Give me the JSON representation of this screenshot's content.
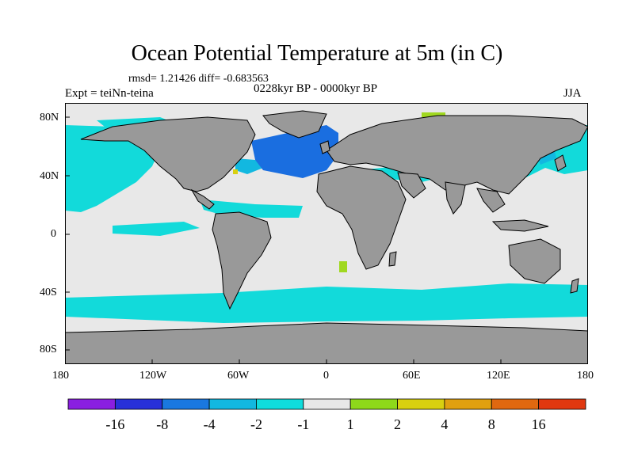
{
  "title": "Ocean Potential Temperature at 5m (in C)",
  "stats": "rmsd= 1.21426 diff= -0.683563",
  "experiment": "Expt = teiNn-teina",
  "period": "0228kyr BP - 0000kyr BP",
  "season": "JJA",
  "axes": {
    "x_ticks": [
      "180",
      "120W",
      "60W",
      "0",
      "60E",
      "120E",
      "180"
    ],
    "y_ticks": [
      "80N",
      "40N",
      "0",
      "40S",
      "80S"
    ]
  },
  "colorbar": {
    "labels": [
      "-16",
      "-8",
      "-4",
      "-2",
      "-1",
      "1",
      "2",
      "4",
      "8",
      "16"
    ],
    "colors": [
      "#8a1fe0",
      "#2830d8",
      "#1a78e0",
      "#12b8e0",
      "#10dcdc",
      "#e8e8e8",
      "#8ed81a",
      "#d8d010",
      "#e0a010",
      "#e06810",
      "#e03810"
    ]
  },
  "colors": {
    "land": "#999999",
    "ocean_neutral": "#e8e8e8",
    "cool_light": "#12dada",
    "cool_mid": "#12b8e0",
    "cool_strong": "#1a6ee0",
    "warm_light": "#a0d820",
    "warm_yellow": "#d8d010"
  }
}
